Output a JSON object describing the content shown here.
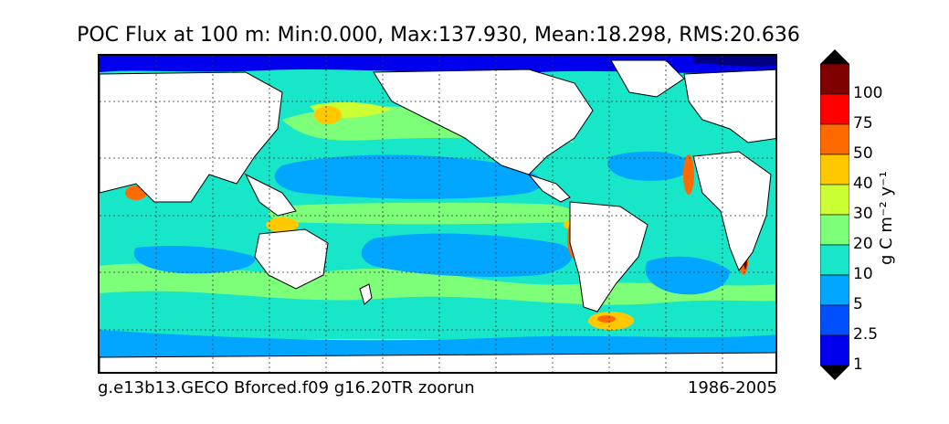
{
  "title": "POC Flux at 100 m: Min:0.000, Max:137.930, Mean:18.298, RMS:20.636",
  "footer": {
    "case_name": "g.e13b13.GECO Bforced.f09 g16.20TR zoorun",
    "years": "1986-2005"
  },
  "colorbar": {
    "label": "g C m⁻² y⁻¹",
    "ticks": [
      "100",
      "75",
      "50",
      "40",
      "30",
      "20",
      "10",
      "5",
      "2.5",
      "1"
    ],
    "colors": [
      "#800000",
      "#ff0000",
      "#ff6a00",
      "#ffc800",
      "#ccff33",
      "#7dff7a",
      "#18e6c8",
      "#00a6ff",
      "#0050ff",
      "#0000ee",
      "#000080"
    ]
  },
  "legend_colors": {
    "land": "#ffffff",
    "background_ocean": "#18e6c8"
  }
}
